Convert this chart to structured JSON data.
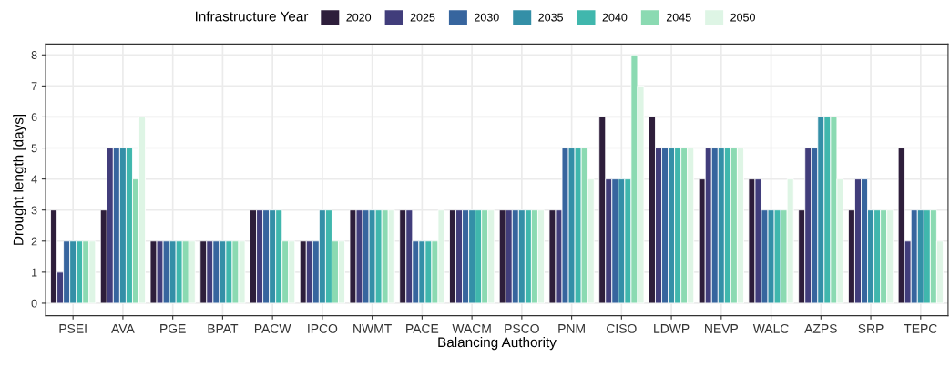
{
  "chart_data": {
    "type": "bar",
    "xlabel": "Balancing Authority",
    "ylabel": "Drought length [days]",
    "legend_title": "Infrastructure Year",
    "categories": [
      "PSEI",
      "AVA",
      "PGE",
      "BPAT",
      "PACW",
      "IPCO",
      "NWMT",
      "PACE",
      "WACM",
      "PSCO",
      "PNM",
      "CISO",
      "LDWP",
      "NEVP",
      "WALC",
      "AZPS",
      "SRP",
      "TEPC"
    ],
    "series": [
      {
        "name": "2020",
        "color": "#2e1e3b",
        "values": [
          3,
          3,
          2,
          2,
          3,
          2,
          3,
          3,
          3,
          3,
          3,
          6,
          6,
          4,
          4,
          3,
          3,
          5
        ]
      },
      {
        "name": "2025",
        "color": "#413d7b",
        "values": [
          1,
          5,
          2,
          2,
          3,
          2,
          3,
          3,
          3,
          3,
          3,
          4,
          5,
          5,
          4,
          5,
          4,
          2
        ]
      },
      {
        "name": "2030",
        "color": "#37659e",
        "values": [
          2,
          5,
          2,
          2,
          3,
          2,
          3,
          2,
          3,
          3,
          5,
          4,
          5,
          5,
          3,
          5,
          4,
          3
        ]
      },
      {
        "name": "2035",
        "color": "#348fa7",
        "values": [
          2,
          5,
          2,
          2,
          3,
          3,
          3,
          2,
          3,
          3,
          5,
          4,
          5,
          5,
          3,
          6,
          3,
          3
        ]
      },
      {
        "name": "2040",
        "color": "#40b7ad",
        "values": [
          2,
          5,
          2,
          2,
          3,
          3,
          3,
          2,
          3,
          3,
          5,
          4,
          5,
          5,
          3,
          6,
          3,
          3
        ]
      },
      {
        "name": "2045",
        "color": "#8bdab2",
        "values": [
          2,
          4,
          2,
          2,
          2,
          2,
          3,
          2,
          3,
          3,
          5,
          8,
          5,
          5,
          3,
          6,
          3,
          3
        ]
      },
      {
        "name": "2050",
        "color": "#def5e5",
        "values": [
          2,
          6,
          2,
          2,
          2,
          2,
          3,
          3,
          3,
          3,
          4,
          7,
          5,
          5,
          4,
          4,
          3,
          2
        ]
      }
    ],
    "ylim": [
      -0.4,
      8.35
    ],
    "yticks": [
      0,
      1,
      2,
      3,
      4,
      5,
      6,
      7,
      8
    ],
    "grid": true,
    "legend": "top"
  }
}
